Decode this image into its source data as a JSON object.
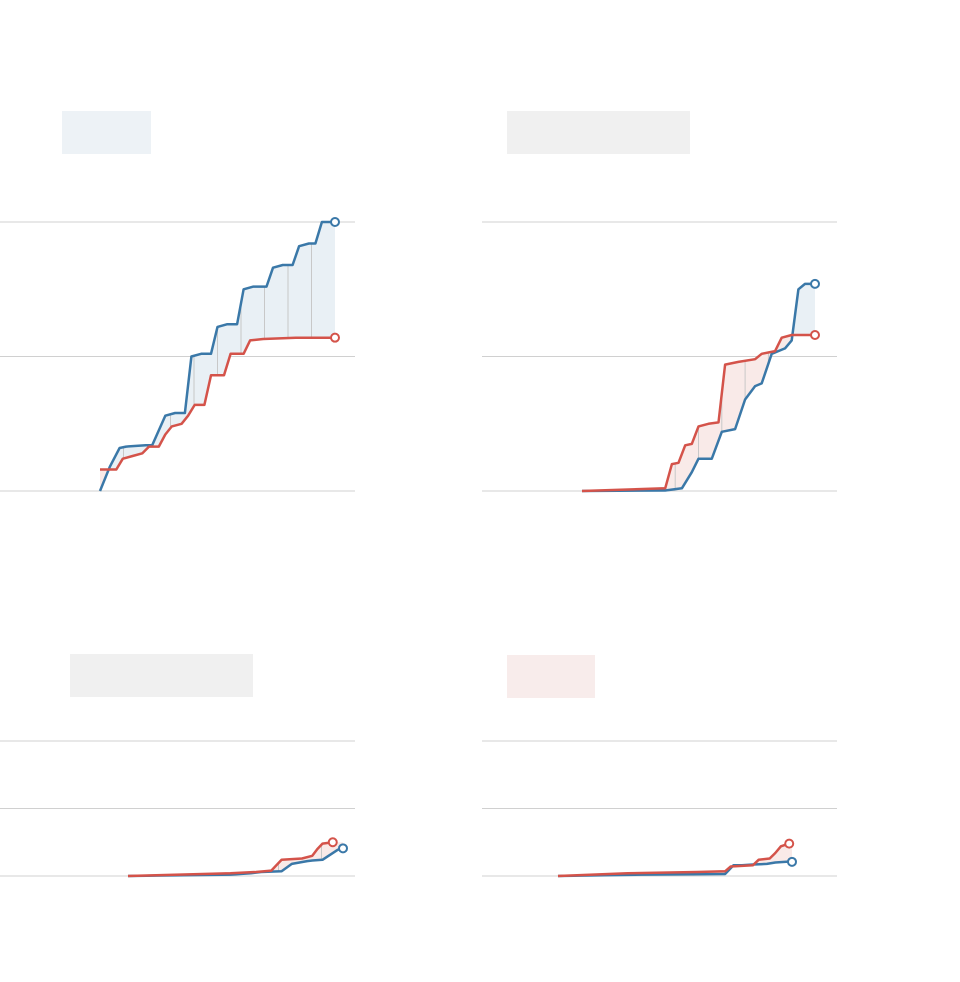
{
  "colors": {
    "blue": "#3a78a8",
    "red": "#d4534a",
    "blue_fill": "#e9f0f5",
    "red_fill": "#f9eae8",
    "grey_label": "#f0f0f0",
    "blue_label": "#edf2f6",
    "red_label": "#f8eceb",
    "grid": "#d0d0d0"
  },
  "chart_data": [
    {
      "type": "line",
      "label_style": "blue",
      "ylim": [
        0,
        100
      ],
      "grid": true,
      "series": [
        {
          "color": "blue",
          "points": [
            [
              0,
              0
            ],
            [
              3,
              9
            ],
            [
              6,
              16
            ],
            [
              8,
              16.5
            ],
            [
              14,
              17
            ],
            [
              16,
              17
            ],
            [
              20,
              28
            ],
            [
              23,
              29
            ],
            [
              26,
              29
            ],
            [
              28,
              50
            ],
            [
              31,
              51
            ],
            [
              34,
              51
            ],
            [
              36,
              61
            ],
            [
              39,
              62
            ],
            [
              42,
              62
            ],
            [
              44,
              75
            ],
            [
              47,
              76
            ],
            [
              51,
              76
            ],
            [
              53,
              83
            ],
            [
              56,
              84
            ],
            [
              59,
              84
            ],
            [
              61,
              91
            ],
            [
              64,
              92
            ],
            [
              66,
              92
            ],
            [
              68,
              100
            ],
            [
              72,
              100
            ]
          ]
        },
        {
          "color": "red",
          "points": [
            [
              0,
              8
            ],
            [
              5,
              8
            ],
            [
              7,
              12
            ],
            [
              10,
              13
            ],
            [
              13,
              14
            ],
            [
              15,
              16.5
            ],
            [
              18,
              16.5
            ],
            [
              20,
              21
            ],
            [
              22,
              24
            ],
            [
              25,
              25
            ],
            [
              27,
              28
            ],
            [
              29,
              32
            ],
            [
              32,
              32
            ],
            [
              34,
              43
            ],
            [
              38,
              43
            ],
            [
              40,
              51
            ],
            [
              44,
              51
            ],
            [
              46,
              56
            ],
            [
              50,
              56.5
            ],
            [
              60,
              57
            ],
            [
              72,
              57
            ]
          ]
        }
      ]
    },
    {
      "type": "line",
      "label_style": "grey",
      "ylim": [
        0,
        100
      ],
      "grid": true,
      "series": [
        {
          "color": "blue",
          "points": [
            [
              0,
              0
            ],
            [
              25,
              0.2
            ],
            [
              30,
              1
            ],
            [
              33,
              7
            ],
            [
              35,
              12
            ],
            [
              39,
              12
            ],
            [
              42,
              22
            ],
            [
              46,
              23
            ],
            [
              49,
              34
            ],
            [
              52,
              39
            ],
            [
              54,
              40
            ],
            [
              57,
              51
            ],
            [
              61,
              53
            ],
            [
              63,
              56
            ],
            [
              65,
              75
            ],
            [
              67,
              77
            ],
            [
              70,
              77
            ]
          ]
        },
        {
          "color": "red",
          "points": [
            [
              0,
              0
            ],
            [
              25,
              1
            ],
            [
              27,
              10
            ],
            [
              29,
              10.5
            ],
            [
              31,
              17
            ],
            [
              33,
              17.5
            ],
            [
              35,
              24
            ],
            [
              38,
              25
            ],
            [
              41,
              25.5
            ],
            [
              43,
              47
            ],
            [
              47,
              48
            ],
            [
              52,
              49
            ],
            [
              54,
              51
            ],
            [
              58,
              52
            ],
            [
              60,
              57
            ],
            [
              63,
              58
            ],
            [
              70,
              58
            ]
          ]
        }
      ]
    },
    {
      "type": "line",
      "label_style": "grey",
      "ylim": [
        0,
        100
      ],
      "grid": true,
      "series": [
        {
          "color": "blue",
          "points": [
            [
              0,
              0
            ],
            [
              40,
              1
            ],
            [
              48,
              2
            ],
            [
              52,
              3
            ],
            [
              60,
              3.5
            ],
            [
              64,
              9
            ],
            [
              67,
              10
            ],
            [
              70,
              11
            ],
            [
              72,
              11.5
            ],
            [
              76,
              12
            ],
            [
              78,
              14.5
            ],
            [
              82,
              19.5
            ],
            [
              84,
              20.5
            ]
          ]
        },
        {
          "color": "red",
          "points": [
            [
              0,
              0
            ],
            [
              20,
              1
            ],
            [
              40,
              2
            ],
            [
              50,
              3
            ],
            [
              56,
              4
            ],
            [
              60,
              12
            ],
            [
              64,
              12.5
            ],
            [
              68,
              13
            ],
            [
              72,
              15
            ],
            [
              74,
              20
            ],
            [
              76,
              24
            ],
            [
              80,
              25
            ]
          ]
        }
      ]
    },
    {
      "type": "line",
      "label_style": "red",
      "ylim": [
        0,
        100
      ],
      "grid": true,
      "series": [
        {
          "color": "blue",
          "points": [
            [
              0,
              0
            ],
            [
              30,
              1
            ],
            [
              60,
              1.5
            ],
            [
              63,
              8
            ],
            [
              66,
              8
            ],
            [
              70,
              8.5
            ],
            [
              75,
              9
            ],
            [
              78,
              10
            ],
            [
              82,
              10.5
            ],
            [
              84,
              10.5
            ]
          ]
        },
        {
          "color": "red",
          "points": [
            [
              0,
              0
            ],
            [
              25,
              2
            ],
            [
              50,
              3
            ],
            [
              60,
              3.5
            ],
            [
              62,
              7
            ],
            [
              66,
              7.5
            ],
            [
              70,
              8
            ],
            [
              72,
              12
            ],
            [
              76,
              13
            ],
            [
              78,
              17
            ],
            [
              80,
              22
            ],
            [
              83,
              24
            ]
          ]
        }
      ]
    }
  ]
}
